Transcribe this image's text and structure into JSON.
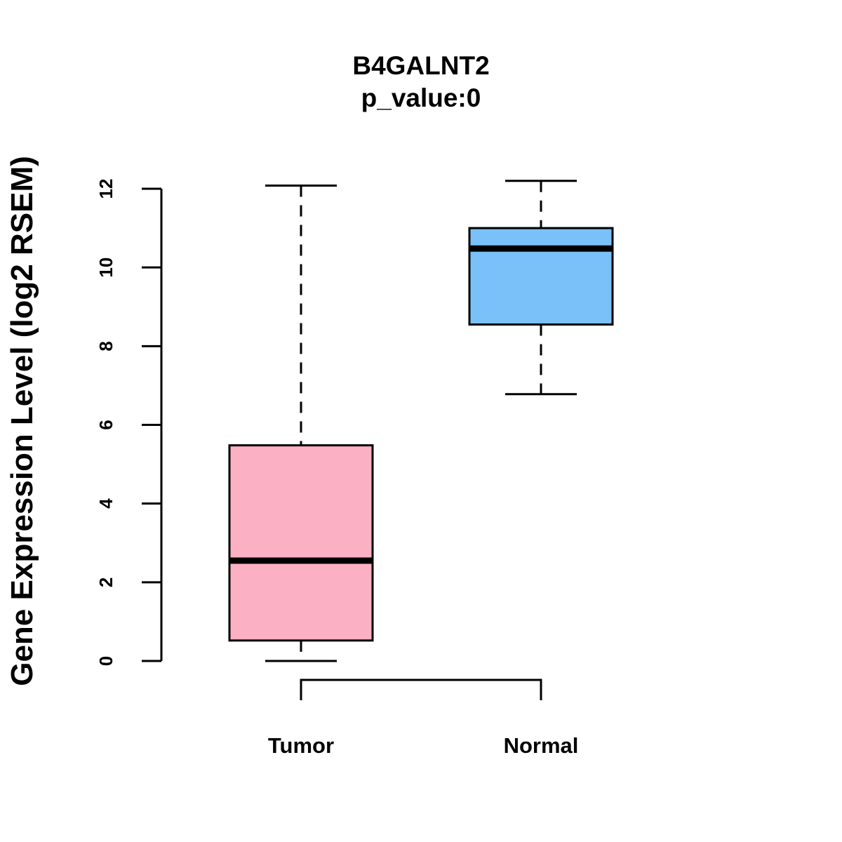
{
  "chart_data": {
    "type": "boxplot",
    "title": "B4GALNT2",
    "subtitle": "p_value:0",
    "xlabel": "",
    "ylabel": "Gene Expression Level (log2 RSEM)",
    "ylim": [
      0,
      12
    ],
    "yticks": [
      "0",
      "2",
      "4",
      "6",
      "8",
      "10",
      "12"
    ],
    "categories": [
      "Tumor",
      "Normal"
    ],
    "boxes": [
      {
        "label": "Tumor",
        "min": 0.0,
        "q1": 0.52,
        "median": 2.55,
        "q3": 5.48,
        "max": 12.08,
        "color": "#FBB0C3"
      },
      {
        "label": "Normal",
        "min": 6.78,
        "q1": 8.55,
        "median": 10.48,
        "q3": 11.0,
        "max": 12.2,
        "color": "#79C1F8"
      }
    ],
    "grid": false,
    "legend": "none"
  }
}
